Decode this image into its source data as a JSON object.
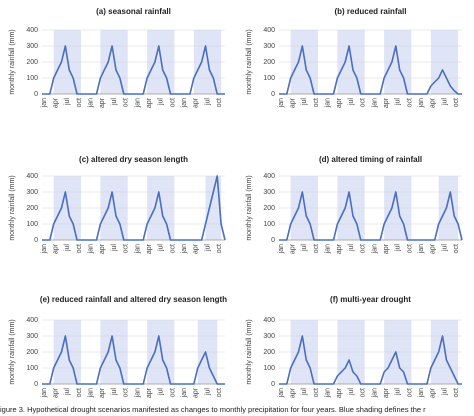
{
  "chart_data": [
    {
      "type": "line",
      "title": "(a) seasonal rainfall",
      "ylabel": "monthly rainfall (mm)",
      "categories": [
        "jan",
        null,
        null,
        "apr",
        null,
        null,
        "jul",
        null,
        null,
        "oct",
        null,
        null,
        "jan",
        null,
        null,
        "apr",
        null,
        null,
        "jul",
        null,
        null,
        "oct",
        null,
        null,
        "jan",
        null,
        null,
        "apr",
        null,
        null,
        "jul",
        null,
        null,
        "oct",
        null,
        null,
        "jan",
        null,
        null,
        "apr",
        null,
        null,
        "jul",
        null,
        null,
        "oct",
        null,
        null
      ],
      "values": [
        0,
        0,
        0,
        100,
        150,
        200,
        300,
        150,
        100,
        0,
        0,
        0,
        0,
        0,
        0,
        100,
        150,
        200,
        300,
        150,
        100,
        0,
        0,
        0,
        0,
        0,
        0,
        100,
        150,
        200,
        300,
        150,
        100,
        0,
        0,
        0,
        0,
        0,
        0,
        100,
        150,
        200,
        300,
        150,
        100,
        0,
        0,
        0
      ],
      "color": "#4a6fc0",
      "shading_color": "#dfe4f6",
      "shaded": [
        [
          3,
          10
        ],
        [
          15,
          22
        ],
        [
          27,
          34
        ],
        [
          39,
          46
        ]
      ],
      "ylim": [
        0,
        400
      ],
      "yticks": [
        0,
        100,
        200,
        300,
        400
      ],
      "grid": true
    },
    {
      "type": "line",
      "title": "(b) reduced rainfall",
      "ylabel": "monthly rainfall (mm)",
      "categories": [
        "jan",
        null,
        null,
        "apr",
        null,
        null,
        "jul",
        null,
        null,
        "oct",
        null,
        null,
        "jan",
        null,
        null,
        "apr",
        null,
        null,
        "jul",
        null,
        null,
        "oct",
        null,
        null,
        "jan",
        null,
        null,
        "apr",
        null,
        null,
        "jul",
        null,
        null,
        "oct",
        null,
        null,
        "jan",
        null,
        null,
        "apr",
        null,
        null,
        "jul",
        null,
        null,
        "oct",
        null,
        null
      ],
      "values": [
        0,
        0,
        0,
        100,
        150,
        200,
        300,
        150,
        100,
        0,
        0,
        0,
        0,
        0,
        0,
        100,
        150,
        200,
        300,
        150,
        100,
        0,
        0,
        0,
        0,
        0,
        0,
        100,
        150,
        200,
        300,
        150,
        100,
        0,
        0,
        0,
        0,
        0,
        0,
        50,
        75,
        100,
        150,
        100,
        50,
        20,
        0,
        0
      ],
      "color": "#4a6fc0",
      "shading_color": "#dfe4f6",
      "shaded": [
        [
          3,
          10
        ],
        [
          15,
          22
        ],
        [
          27,
          34
        ],
        [
          39,
          46
        ]
      ],
      "ylim": [
        0,
        400
      ],
      "yticks": [
        0,
        100,
        200,
        300,
        400
      ],
      "grid": true
    },
    {
      "type": "line",
      "title": "(c) altered dry season length",
      "ylabel": "monthly rainfall (mm)",
      "categories": [
        "jan",
        null,
        null,
        "apr",
        null,
        null,
        "jul",
        null,
        null,
        "oct",
        null,
        null,
        "jan",
        null,
        null,
        "apr",
        null,
        null,
        "jul",
        null,
        null,
        "oct",
        null,
        null,
        "jan",
        null,
        null,
        "apr",
        null,
        null,
        "jul",
        null,
        null,
        "oct",
        null,
        null,
        "jan",
        null,
        null,
        "apr",
        null,
        null,
        "jul",
        null,
        null,
        "oct",
        null,
        null
      ],
      "values": [
        0,
        0,
        0,
        100,
        150,
        200,
        300,
        150,
        100,
        0,
        0,
        0,
        0,
        0,
        0,
        100,
        150,
        200,
        300,
        150,
        100,
        0,
        0,
        0,
        0,
        0,
        0,
        100,
        150,
        200,
        300,
        150,
        100,
        0,
        0,
        0,
        0,
        0,
        0,
        0,
        0,
        0,
        100,
        200,
        300,
        400,
        100,
        0
      ],
      "color": "#4a6fc0",
      "shading_color": "#dfe4f6",
      "shaded": [
        [
          3,
          10
        ],
        [
          15,
          22
        ],
        [
          27,
          34
        ],
        [
          42,
          46
        ]
      ],
      "ylim": [
        0,
        400
      ],
      "yticks": [
        0,
        100,
        200,
        300,
        400
      ],
      "grid": true
    },
    {
      "type": "line",
      "title": "(d) altered timing of rainfall",
      "ylabel": "monthly rainfall (mm)",
      "categories": [
        "jan",
        null,
        null,
        "apr",
        null,
        null,
        "jul",
        null,
        null,
        "oct",
        null,
        null,
        "jan",
        null,
        null,
        "apr",
        null,
        null,
        "jul",
        null,
        null,
        "oct",
        null,
        null,
        "jan",
        null,
        null,
        "apr",
        null,
        null,
        "jul",
        null,
        null,
        "oct",
        null,
        null,
        "jan",
        null,
        null,
        "apr",
        null,
        null,
        "jul",
        null,
        null,
        "oct",
        null,
        null
      ],
      "values": [
        0,
        0,
        0,
        100,
        150,
        200,
        300,
        150,
        100,
        0,
        0,
        0,
        0,
        0,
        0,
        100,
        150,
        200,
        300,
        150,
        100,
        0,
        0,
        0,
        0,
        0,
        0,
        100,
        150,
        200,
        300,
        150,
        100,
        0,
        0,
        0,
        0,
        0,
        0,
        0,
        0,
        100,
        150,
        200,
        300,
        150,
        100,
        0
      ],
      "color": "#4a6fc0",
      "shading_color": "#dfe4f6",
      "shaded": [
        [
          3,
          10
        ],
        [
          15,
          22
        ],
        [
          27,
          34
        ],
        [
          41,
          46
        ]
      ],
      "ylim": [
        0,
        400
      ],
      "yticks": [
        0,
        100,
        200,
        300,
        400
      ],
      "grid": true
    },
    {
      "type": "line",
      "title": "(e) reduced rainfall and altered dry season length",
      "ylabel": "monthly rainfall (mm)",
      "categories": [
        "jan",
        null,
        null,
        "apr",
        null,
        null,
        "jul",
        null,
        null,
        "oct",
        null,
        null,
        "jan",
        null,
        null,
        "apr",
        null,
        null,
        "jul",
        null,
        null,
        "oct",
        null,
        null,
        "jan",
        null,
        null,
        "apr",
        null,
        null,
        "jul",
        null,
        null,
        "oct",
        null,
        null,
        "jan",
        null,
        null,
        "apr",
        null,
        null,
        "jul",
        null,
        null,
        "oct",
        null,
        null
      ],
      "values": [
        0,
        0,
        0,
        100,
        150,
        200,
        300,
        150,
        100,
        0,
        0,
        0,
        0,
        0,
        0,
        100,
        150,
        200,
        300,
        150,
        100,
        0,
        0,
        0,
        0,
        0,
        0,
        100,
        150,
        200,
        300,
        150,
        100,
        0,
        0,
        0,
        0,
        0,
        0,
        0,
        100,
        150,
        200,
        100,
        50,
        0,
        0,
        0
      ],
      "color": "#4a6fc0",
      "shading_color": "#dfe4f6",
      "shaded": [
        [
          3,
          10
        ],
        [
          15,
          22
        ],
        [
          27,
          34
        ],
        [
          40,
          45
        ]
      ],
      "ylim": [
        0,
        400
      ],
      "yticks": [
        0,
        100,
        200,
        300,
        400
      ],
      "grid": true
    },
    {
      "type": "line",
      "title": "(f) multi-year drought",
      "ylabel": "monthly rainfall (mm)",
      "categories": [
        "jan",
        null,
        null,
        "apr",
        null,
        null,
        "jul",
        null,
        null,
        "oct",
        null,
        null,
        "jan",
        null,
        null,
        "apr",
        null,
        null,
        "jul",
        null,
        null,
        "oct",
        null,
        null,
        "jan",
        null,
        null,
        "apr",
        null,
        null,
        "jul",
        null,
        null,
        "oct",
        null,
        null,
        "jan",
        null,
        null,
        "apr",
        null,
        null,
        "jul",
        null,
        null,
        "oct",
        null,
        null
      ],
      "values": [
        0,
        0,
        0,
        100,
        150,
        200,
        300,
        150,
        100,
        0,
        0,
        0,
        0,
        0,
        0,
        50,
        75,
        100,
        150,
        75,
        50,
        0,
        0,
        0,
        0,
        0,
        0,
        75,
        100,
        150,
        200,
        100,
        75,
        0,
        0,
        0,
        0,
        0,
        0,
        100,
        150,
        200,
        300,
        150,
        100,
        50,
        0,
        0
      ],
      "color": "#4a6fc0",
      "shading_color": "#dfe4f6",
      "shaded": [
        [
          3,
          10
        ],
        [
          15,
          22
        ],
        [
          27,
          34
        ],
        [
          39,
          46
        ]
      ],
      "ylim": [
        0,
        400
      ],
      "yticks": [
        0,
        100,
        200,
        300,
        400
      ],
      "grid": true
    }
  ],
  "caption": "igure 3. Hypothetical drought scenarios manifested as changes to monthly precipitation for four years. Blue shading defines the r"
}
